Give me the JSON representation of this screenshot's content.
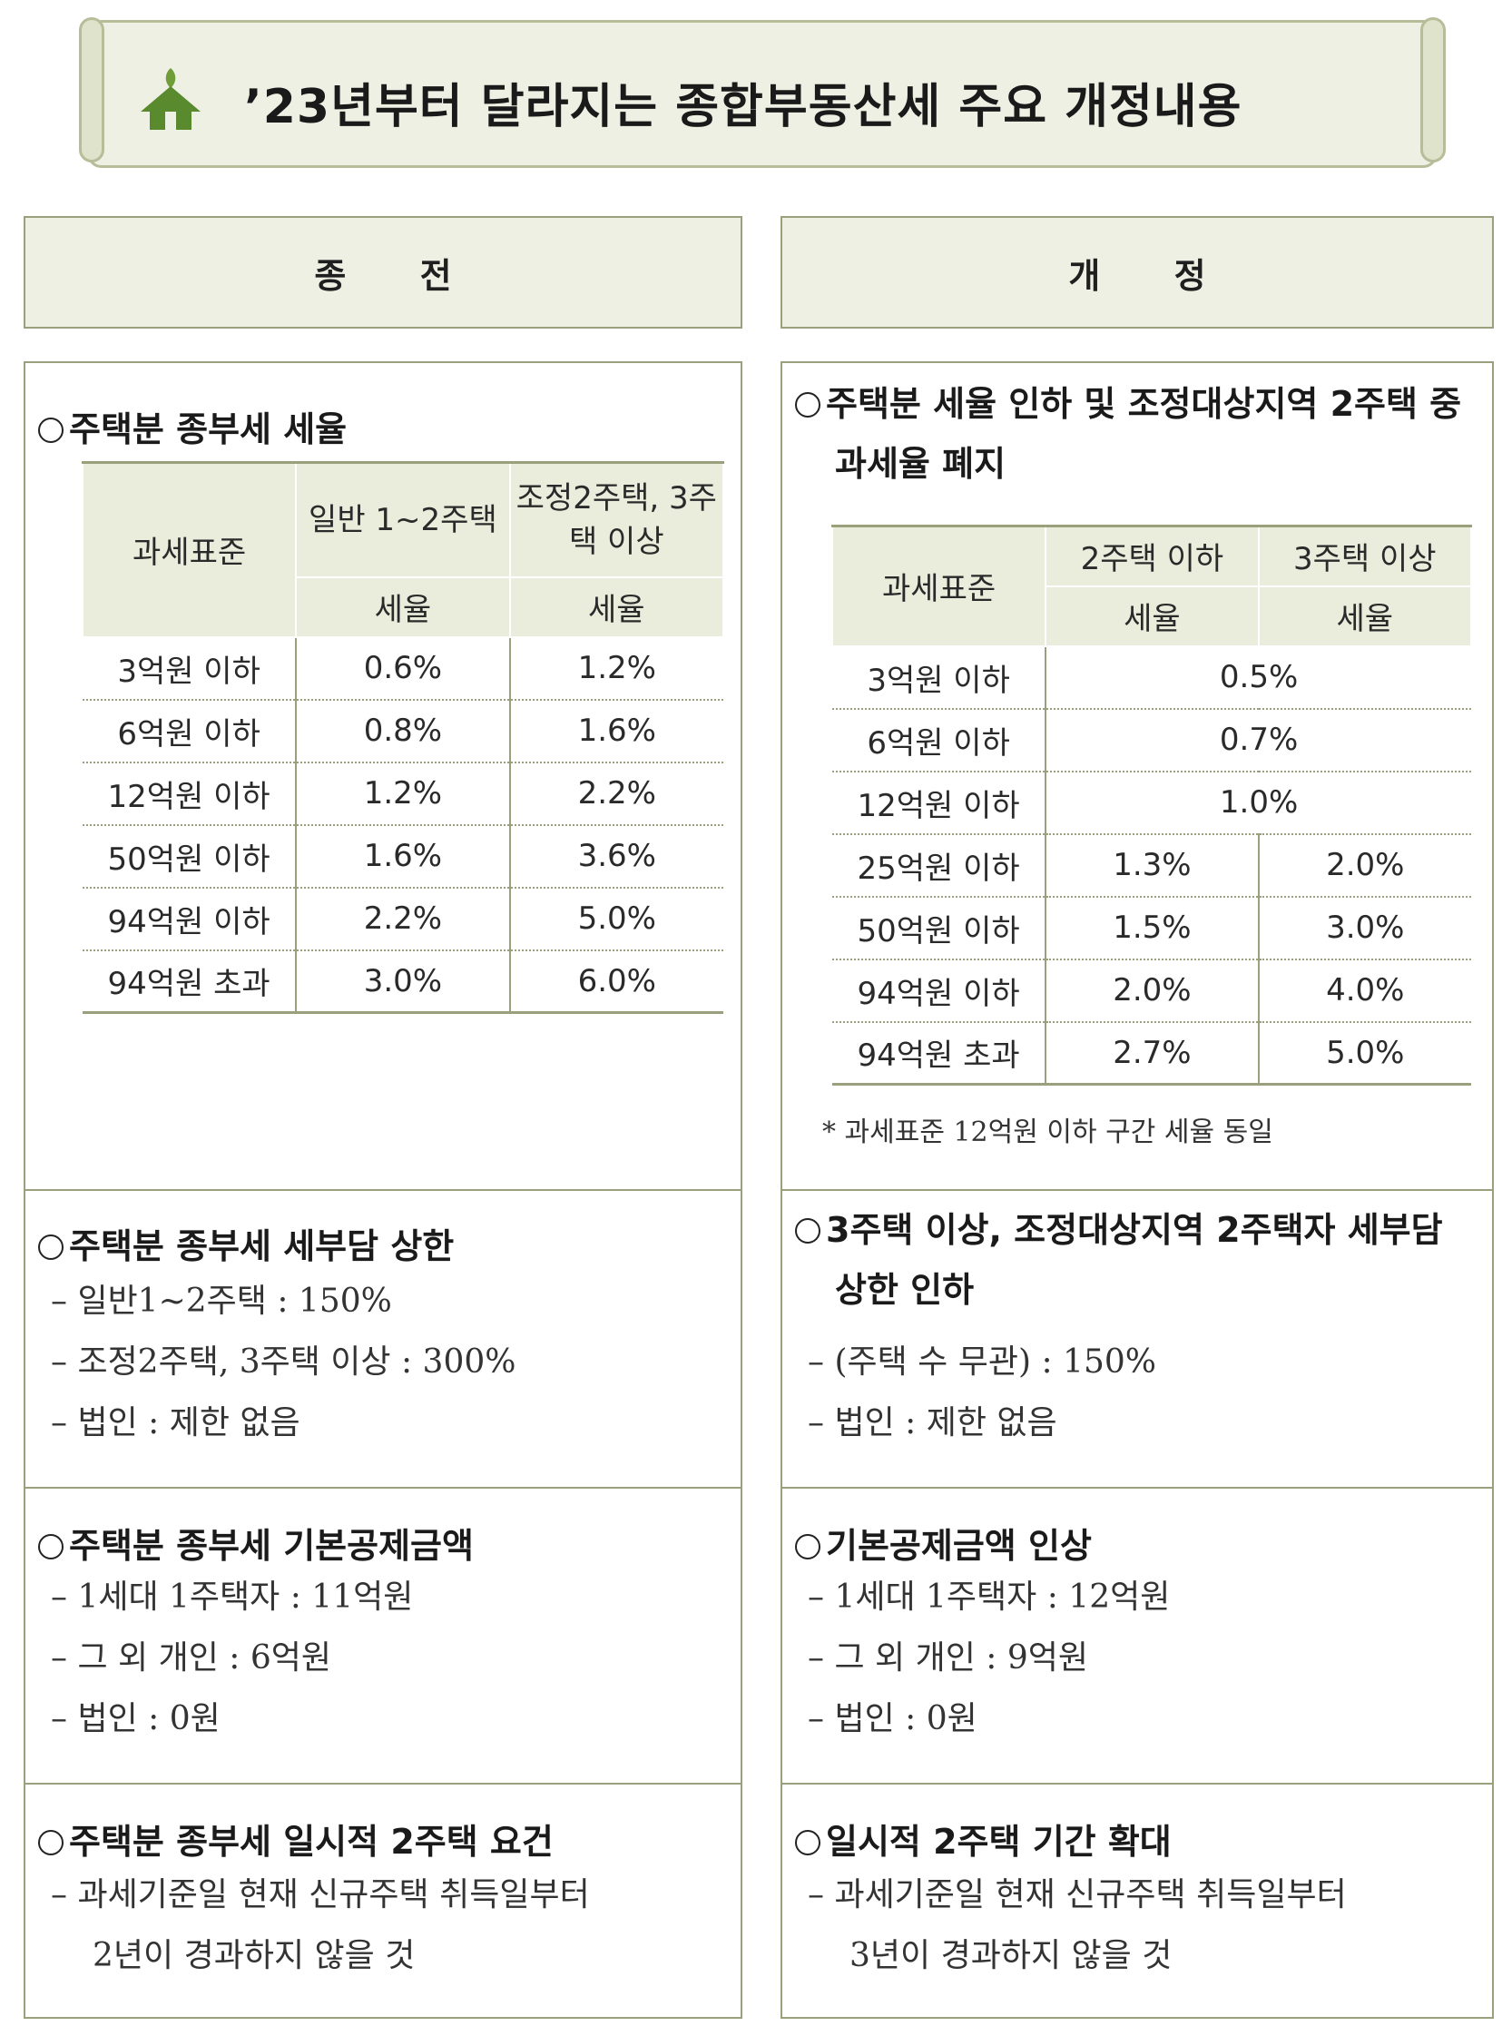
{
  "title": "’23년부터 달라지는 종합부동산세 주요 개정내용",
  "columns": {
    "before": "종 전",
    "after": "개 정"
  },
  "before": {
    "rate": {
      "title": "주택분 종부세 세율",
      "headers": {
        "base": "과세표준",
        "col1": "일반 1~2주택",
        "col2": "조정2주택, 3주택 이상",
        "sub": "세율"
      },
      "rows": [
        [
          "3억원 이하",
          "0.6%",
          "1.2%"
        ],
        [
          "6억원 이하",
          "0.8%",
          "1.6%"
        ],
        [
          "12억원 이하",
          "1.2%",
          "2.2%"
        ],
        [
          "50억원 이하",
          "1.6%",
          "3.6%"
        ],
        [
          "94억원 이하",
          "2.2%",
          "5.0%"
        ],
        [
          "94억원 초과",
          "3.0%",
          "6.0%"
        ]
      ]
    },
    "cap": {
      "title": "주택분 종부세 세부담 상한",
      "items": [
        "– 일반1~2주택 : 150%",
        "– 조정2주택, 3주택 이상 : 300%",
        "– 법인 : 제한 없음"
      ]
    },
    "deduction": {
      "title": "주택분 종부세 기본공제금액",
      "items": [
        "– 1세대 1주택자 : 11억원",
        "– 그 외 개인 : 6억원",
        "– 법인 : 0원"
      ]
    },
    "temp": {
      "title": "주택분 종부세 일시적 2주택 요건",
      "items": [
        "– 과세기준일 현재 신규주택 취득일부터",
        "2년이 경과하지 않을 것"
      ]
    }
  },
  "after": {
    "rate": {
      "title": "주택분 세율 인하 및 조정대상지역 2주택 중과세율 폐지",
      "headers": {
        "base": "과세표준",
        "col1": "2주택 이하",
        "col2": "3주택 이상",
        "sub": "세율"
      },
      "merged_rows": [
        [
          "3억원 이하",
          "0.5%"
        ],
        [
          "6억원 이하",
          "0.7%"
        ],
        [
          "12억원 이하",
          "1.0%"
        ]
      ],
      "rows": [
        [
          "25억원 이하",
          "1.3%",
          "2.0%"
        ],
        [
          "50억원 이하",
          "1.5%",
          "3.0%"
        ],
        [
          "94억원 이하",
          "2.0%",
          "4.0%"
        ],
        [
          "94억원 초과",
          "2.7%",
          "5.0%"
        ]
      ],
      "note": "* 과세표준 12억원 이하 구간 세율 동일"
    },
    "cap": {
      "title": "3주택 이상, 조정대상지역 2주택자 세부담 상한 인하",
      "items": [
        "– (주택 수 무관) : 150%",
        "– 법인 : 제한 없음"
      ]
    },
    "deduction": {
      "title": "기본공제금액 인상",
      "items": [
        "– 1세대 1주택자 : 12억원",
        "– 그 외 개인 : 9억원",
        "– 법인 : 0원"
      ]
    },
    "temp": {
      "title": "일시적 2주택 기간 확대",
      "items": [
        "– 과세기준일 현재 신규주택 취득일부터",
        "3년이 경과하지 않을 것"
      ]
    }
  },
  "colors": {
    "accent": "#9aa07c",
    "header_bg": "#eef0e4",
    "house_icon": "#5a8a2e"
  },
  "icon": "house-leaf-icon"
}
